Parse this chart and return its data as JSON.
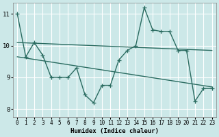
{
  "xlabel": "Humidex (Indice chaleur)",
  "background_color": "#cce8e8",
  "grid_color": "#ffffff",
  "line_color": "#2a6b60",
  "xlim": [
    -0.5,
    23.5
  ],
  "ylim": [
    7.75,
    11.35
  ],
  "xticks": [
    0,
    1,
    2,
    3,
    4,
    5,
    6,
    7,
    8,
    9,
    10,
    11,
    12,
    13,
    14,
    15,
    16,
    17,
    18,
    19,
    20,
    21,
    22,
    23
  ],
  "yticks": [
    8,
    9,
    10,
    11
  ],
  "line1_x": [
    0,
    1,
    2,
    3,
    4,
    5,
    6,
    7,
    8,
    9,
    10,
    11,
    12,
    13,
    14,
    15,
    16,
    17,
    18,
    19,
    20,
    21,
    22,
    23
  ],
  "line1_y": [
    11.0,
    9.65,
    10.1,
    9.7,
    9.0,
    9.0,
    9.0,
    9.3,
    8.45,
    8.2,
    8.75,
    8.75,
    9.55,
    9.85,
    10.0,
    11.2,
    10.5,
    10.45,
    10.45,
    9.85,
    9.85,
    8.25,
    8.65,
    8.65
  ],
  "line2_x": [
    0,
    23
  ],
  "line2_y": [
    10.1,
    9.85
  ],
  "line3_x": [
    0,
    23
  ],
  "line3_y": [
    9.65,
    8.7
  ],
  "marker": "+",
  "markersize": 4,
  "linewidth": 1.0
}
